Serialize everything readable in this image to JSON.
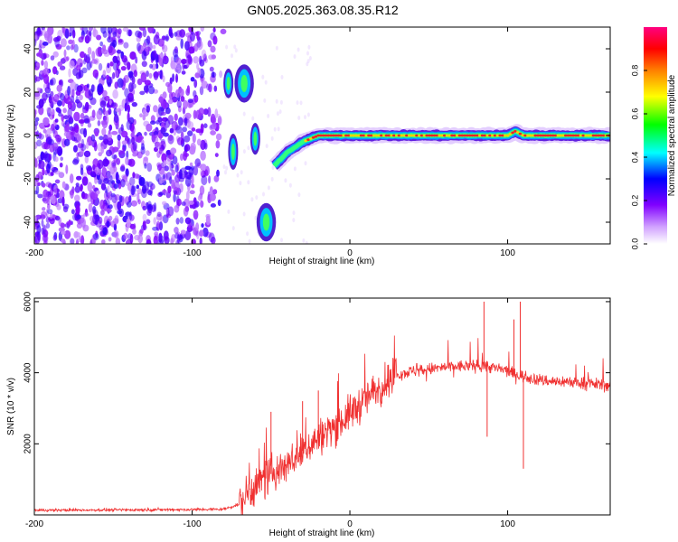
{
  "title": "GN05.2025.363.08.35.R12",
  "chart_data": [
    {
      "type": "heatmap",
      "name": "spectrogram",
      "xlabel": "Height of straight line (km)",
      "ylabel": "Frequency (Hz)",
      "xlim": [
        -200,
        165
      ],
      "ylim": [
        -50,
        50
      ],
      "xticks": [
        "-200",
        "-100",
        "0",
        "100"
      ],
      "xtick_values": [
        -200,
        -100,
        0,
        100
      ],
      "yticks": [
        "40",
        "20",
        "0",
        "-20",
        "-40"
      ],
      "ytick_values": [
        40,
        20,
        0,
        -20,
        -40
      ],
      "noise_region_x": [
        -200,
        -80
      ],
      "signal_segments": [
        {
          "x": [
            -79,
            -75
          ],
          "y": [
            18,
            30
          ]
        },
        {
          "x": [
            -72,
            -62
          ],
          "y": [
            16,
            32
          ]
        },
        {
          "x": [
            -76,
            -72
          ],
          "y": [
            -15,
            0
          ]
        },
        {
          "x": [
            -62,
            -58
          ],
          "y": [
            -8,
            5
          ]
        },
        {
          "x": [
            -58,
            -48
          ],
          "y": [
            -48,
            -32
          ]
        }
      ],
      "carrier_trace": [
        [
          -48,
          -14
        ],
        [
          -40,
          -8
        ],
        [
          -30,
          -3
        ],
        [
          -20,
          0
        ],
        [
          0,
          0
        ],
        [
          40,
          0
        ],
        [
          80,
          0
        ],
        [
          100,
          0
        ],
        [
          105,
          2
        ],
        [
          110,
          0
        ],
        [
          165,
          0
        ]
      ],
      "colorbar": {
        "label": "Normalized spectral amplitude",
        "ticks": [
          "0.0",
          "0.2",
          "0.4",
          "0.6",
          "0.8"
        ],
        "tick_values": [
          0.0,
          0.2,
          0.4,
          0.6,
          0.8
        ],
        "range": [
          0,
          1
        ],
        "colors": [
          "#ffffff",
          "#8000ff",
          "#0000ff",
          "#00ffff",
          "#00ff00",
          "#ffff00",
          "#ff8000",
          "#ff0000",
          "#ff0080"
        ]
      }
    },
    {
      "type": "line",
      "name": "snr",
      "xlabel": "Height of straight line (km)",
      "ylabel": "SNR (10 * v/v)",
      "xlim": [
        -200,
        165
      ],
      "ylim": [
        0,
        6100
      ],
      "xticks": [
        "-200",
        "-100",
        "0",
        "100"
      ],
      "xtick_values": [
        -200,
        -100,
        0,
        100
      ],
      "yticks": [
        "6000",
        "4000",
        "2000"
      ],
      "ytick_values": [
        6000,
        4000,
        2000
      ],
      "color": "#f03030",
      "series": [
        {
          "name": "SNR",
          "x": [
            -200,
            -150,
            -100,
            -80,
            -70,
            -65,
            -60,
            -55,
            -50,
            -45,
            -40,
            -35,
            -30,
            -25,
            -20,
            -15,
            -10,
            -5,
            0,
            5,
            10,
            15,
            20,
            25,
            30,
            40,
            50,
            60,
            70,
            80,
            85,
            90,
            100,
            105,
            110,
            115,
            120,
            130,
            140,
            150,
            165
          ],
          "y": [
            130,
            140,
            150,
            160,
            300,
            600,
            800,
            1000,
            1150,
            1300,
            1450,
            1600,
            1800,
            2000,
            2150,
            2350,
            2500,
            2650,
            2850,
            3050,
            3250,
            3450,
            3650,
            3800,
            3950,
            4050,
            4100,
            4150,
            4180,
            4200,
            4200,
            4150,
            4050,
            3950,
            3900,
            3850,
            3800,
            3750,
            3750,
            3700,
            3650
          ]
        }
      ],
      "spikes": [
        {
          "x": 85,
          "y": 6000
        },
        {
          "x": 87,
          "y": 2200
        },
        {
          "x": 108,
          "y": 6000
        },
        {
          "x": 110,
          "y": 1300
        },
        {
          "x": 104,
          "y": 5500
        },
        {
          "x": -50,
          "y": 2900
        },
        {
          "x": -30,
          "y": 3200
        },
        {
          "x": -20,
          "y": 3500
        }
      ]
    }
  ]
}
